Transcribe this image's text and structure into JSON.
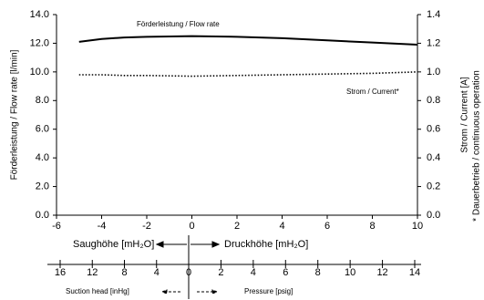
{
  "chart_data": {
    "type": "line",
    "annotations": [
      "Förderleistung / Flow rate",
      "Strom / Current*"
    ],
    "ylabel": "Förderleistung / Flow rate [l/min]",
    "y2label": "Strom / Current [A]",
    "footnote": "* Dauerbetrieb / continuous operation",
    "xlim": [
      -6,
      10
    ],
    "xticks": [
      -6,
      -4,
      -2,
      0,
      2,
      4,
      6,
      8,
      10
    ],
    "ylim": [
      0,
      14
    ],
    "yticks": [
      {
        "value": 0,
        "label": "0.0"
      },
      {
        "value": 2,
        "label": "2.0"
      },
      {
        "value": 4,
        "label": "4.0"
      },
      {
        "value": 6,
        "label": "6.0"
      },
      {
        "value": 8,
        "label": "8.0"
      },
      {
        "value": 10,
        "label": "10.0"
      },
      {
        "value": 12,
        "label": "12.0"
      },
      {
        "value": 14,
        "label": "14.0"
      }
    ],
    "y2lim": [
      0,
      1.4
    ],
    "y2ticks": [
      {
        "value": 0,
        "label": "0.0"
      },
      {
        "value": 0.2,
        "label": "0.2"
      },
      {
        "value": 0.4,
        "label": "0.4"
      },
      {
        "value": 0.6,
        "label": "0.6"
      },
      {
        "value": 0.8,
        "label": "0.8"
      },
      {
        "value": 1,
        "label": "1.0"
      },
      {
        "value": 1.2,
        "label": "1.2"
      },
      {
        "value": 1.4,
        "label": "1.4"
      }
    ],
    "x": [
      -5,
      -4,
      -3,
      -2,
      0,
      2,
      4,
      6,
      8,
      10
    ],
    "series": [
      {
        "name": "Förderleistung / Flow rate",
        "color": "#000000",
        "style": "solid",
        "values": [
          12.1,
          12.3,
          12.4,
          12.45,
          12.5,
          12.45,
          12.35,
          12.2,
          12.05,
          11.9
        ]
      },
      {
        "name": "Strom / Current*",
        "color": "#000000",
        "style": "dotted",
        "axis": "y2",
        "values": [
          0.98,
          0.98,
          0.975,
          0.975,
          0.97,
          0.975,
          0.98,
          0.985,
          0.99,
          1.0
        ]
      }
    ],
    "head_labels": [
      "Saughöhe [mH₂O]",
      "Druckhöhe [mH₂O]"
    ],
    "suction_axis": {
      "label": "Suction head [inHg]",
      "xlim": [
        16,
        0
      ],
      "xticks": [
        16,
        12,
        8,
        4
      ]
    },
    "pressure_axis": {
      "label": "Pressure [psig]",
      "xlim": [
        0,
        14
      ],
      "xticks": [
        0,
        2,
        4,
        6,
        8,
        10,
        12,
        14
      ]
    }
  }
}
